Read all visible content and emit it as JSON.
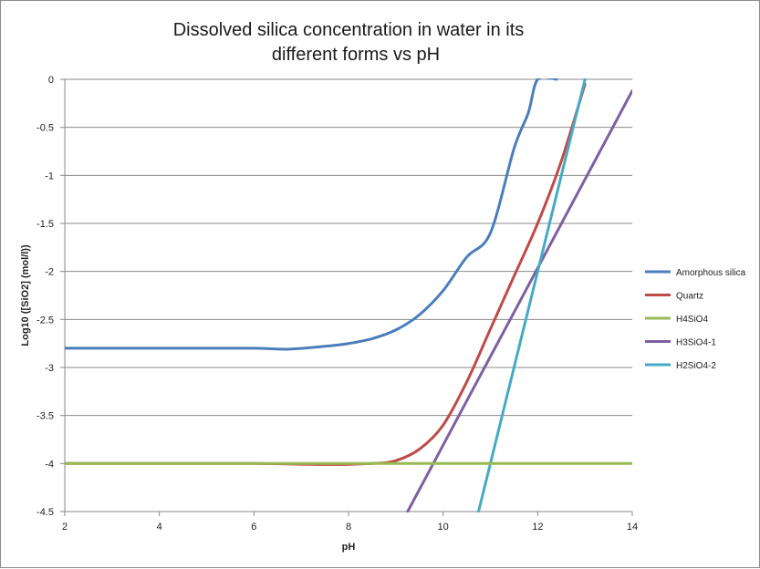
{
  "chart_data": {
    "type": "line",
    "title_lines": [
      "Dissolved silica concentration in water in its",
      "different forms vs pH"
    ],
    "title": "Dissolved silica concentration in water in its different forms vs pH",
    "xlabel": "pH",
    "ylabel": "Log10 ([SiO2] (mol/l))",
    "xlim": [
      2,
      14
    ],
    "ylim": [
      -4.5,
      0
    ],
    "xticks": [
      2,
      4,
      6,
      8,
      10,
      12,
      14
    ],
    "yticks": [
      0,
      -0.5,
      -1,
      -1.5,
      -2,
      -2.5,
      -3,
      -3.5,
      -4,
      -4.5
    ],
    "ytick_labels": [
      "0",
      "-0.5",
      "-1",
      "-1.5",
      "-2",
      "-2.5",
      "-3",
      "-3.5",
      "-4",
      "-4.5"
    ],
    "grid": "horizontal",
    "legend_position": "right",
    "series": [
      {
        "name": "Amorphous silica",
        "color": "#4a7ebb",
        "x": [
          2,
          4,
          6,
          6.7,
          7.5,
          8,
          8.5,
          9,
          9.5,
          10,
          10.5,
          11,
          11.5,
          11.8,
          12,
          12.4
        ],
        "y": [
          -2.8,
          -2.8,
          -2.8,
          -2.81,
          -2.78,
          -2.75,
          -2.7,
          -2.61,
          -2.45,
          -2.2,
          -1.85,
          -1.6,
          -0.72,
          -0.35,
          0,
          0
        ]
      },
      {
        "name": "Quartz",
        "color": "#be4b48",
        "x": [
          2,
          4,
          6,
          7.5,
          8.5,
          9,
          9.5,
          10,
          10.5,
          11,
          11.5,
          12,
          12.5,
          13
        ],
        "y": [
          -4,
          -4,
          -4,
          -4.01,
          -4,
          -3.97,
          -3.85,
          -3.6,
          -3.15,
          -2.6,
          -2.05,
          -1.5,
          -0.85,
          -0.05
        ]
      },
      {
        "name": "H4SiO4",
        "color": "#98b954",
        "x": [
          2,
          14
        ],
        "y": [
          -4,
          -4
        ]
      },
      {
        "name": "H3SiO4-1",
        "color": "#7d60a0",
        "x": [
          9.25,
          14
        ],
        "y": [
          -4.5,
          -0.12
        ]
      },
      {
        "name": "H2SiO4-2",
        "color": "#46aac5",
        "x": [
          10.75,
          13
        ],
        "y": [
          -4.5,
          0
        ]
      }
    ]
  }
}
